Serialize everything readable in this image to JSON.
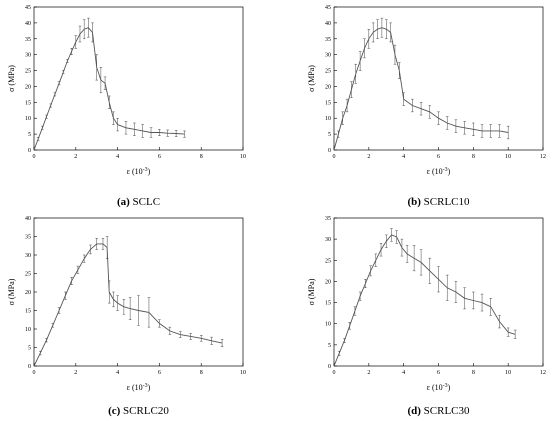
{
  "chart_data": [
    {
      "id": "a",
      "type": "line",
      "caption_letter": "(a)",
      "caption_name": "SCLC",
      "xlabel": "ε (10",
      "xlabel_exp": "-3",
      "xlabel_close": ")",
      "ylabel": "σ (MPa)",
      "xlim": [
        0,
        10
      ],
      "ylim": [
        0,
        45
      ],
      "xticks": [
        0,
        2,
        4,
        6,
        8,
        10
      ],
      "yticks": [
        0,
        5,
        10,
        15,
        20,
        25,
        30,
        35,
        40,
        45
      ],
      "x": [
        0,
        0.2,
        0.4,
        0.6,
        0.8,
        1.0,
        1.2,
        1.4,
        1.6,
        1.8,
        2.0,
        2.2,
        2.4,
        2.6,
        2.8,
        3.0,
        3.2,
        3.4,
        3.6,
        3.8,
        4.0,
        4.4,
        4.8,
        5.2,
        5.6,
        6.0,
        6.4,
        6.8,
        7.2
      ],
      "y": [
        0,
        3.5,
        7,
        10.5,
        14,
        17.5,
        21,
        24.5,
        28,
        31,
        34,
        36.5,
        38,
        38.5,
        37,
        26,
        22,
        21,
        15,
        10,
        8,
        7,
        6.5,
        6,
        5.5,
        5.5,
        5.3,
        5.2,
        5
      ],
      "err": [
        0,
        0.5,
        0.5,
        0.5,
        0.5,
        0.5,
        0.5,
        0.5,
        0.5,
        1,
        2,
        2.5,
        3,
        3,
        3,
        4,
        4,
        2,
        2,
        2,
        2,
        2,
        2,
        2,
        1.5,
        1,
        1,
        1,
        1
      ]
    },
    {
      "id": "b",
      "type": "line",
      "caption_letter": "(b)",
      "caption_name": "SCRLC10",
      "xlabel": "ε (10",
      "xlabel_exp": "-3",
      "xlabel_close": ")",
      "ylabel": "σ (MPa)",
      "xlim": [
        0,
        12
      ],
      "ylim": [
        0,
        45
      ],
      "xticks": [
        0,
        2,
        4,
        6,
        8,
        10,
        12
      ],
      "yticks": [
        0,
        5,
        10,
        15,
        20,
        25,
        30,
        35,
        40,
        45
      ],
      "x": [
        0,
        0.25,
        0.5,
        0.75,
        1.0,
        1.25,
        1.5,
        1.75,
        2.0,
        2.25,
        2.5,
        2.75,
        3.0,
        3.25,
        3.5,
        3.75,
        4.0,
        4.5,
        5.0,
        5.5,
        6.0,
        6.5,
        7.0,
        7.5,
        8.0,
        8.5,
        9.0,
        9.5,
        10.0
      ],
      "y": [
        0,
        5,
        10,
        14,
        19,
        24,
        28,
        32,
        35,
        37,
        38,
        38.5,
        38,
        37,
        30,
        25,
        16,
        14,
        13,
        12,
        10,
        8.5,
        7.5,
        7,
        6.5,
        6,
        6,
        6,
        5.5
      ],
      "err": [
        0,
        1,
        2,
        2,
        2.5,
        3,
        3,
        3,
        3,
        3,
        3,
        3,
        3,
        3,
        3,
        2.5,
        2,
        2,
        2,
        2,
        2,
        2,
        2,
        2,
        2,
        2,
        2,
        2,
        2
      ]
    },
    {
      "id": "c",
      "type": "line",
      "caption_letter": "(c)",
      "caption_name": "SCRLC20",
      "xlabel": "ε (10",
      "xlabel_exp": "-3",
      "xlabel_close": ")",
      "ylabel": "σ (MPa)",
      "xlim": [
        0,
        10
      ],
      "ylim": [
        0,
        40
      ],
      "xticks": [
        0,
        2,
        4,
        6,
        8,
        10
      ],
      "yticks": [
        0,
        5,
        10,
        15,
        20,
        25,
        30,
        35,
        40
      ],
      "x": [
        0,
        0.3,
        0.6,
        0.9,
        1.2,
        1.5,
        1.8,
        2.1,
        2.4,
        2.7,
        3.0,
        3.3,
        3.5,
        3.6,
        3.8,
        4.0,
        4.3,
        4.6,
        5.0,
        5.5,
        6.0,
        6.5,
        7.0,
        7.5,
        8.0,
        8.5,
        9.0
      ],
      "y": [
        0,
        3.5,
        7,
        11,
        15,
        19,
        23,
        26,
        29,
        31.5,
        33,
        33,
        32,
        20,
        18,
        17,
        16,
        15.5,
        15,
        14.5,
        11.5,
        9.5,
        8.5,
        8,
        7.5,
        6.8,
        6.2
      ],
      "err": [
        0,
        0.5,
        0.5,
        0.5,
        0.8,
        1,
        1,
        1,
        1,
        1.2,
        1.5,
        1.5,
        3,
        3,
        2,
        2,
        2,
        3,
        4,
        4,
        1,
        1,
        0.8,
        0.8,
        0.8,
        1,
        1
      ]
    },
    {
      "id": "d",
      "type": "line",
      "caption_letter": "(d)",
      "caption_name": "SCRLC30",
      "xlabel": "ε (10",
      "xlabel_exp": "-3",
      "xlabel_close": ")",
      "ylabel": "σ (MPa)",
      "xlim": [
        0,
        12
      ],
      "ylim": [
        0,
        35
      ],
      "xticks": [
        0,
        2,
        4,
        6,
        8,
        10,
        12
      ],
      "yticks": [
        0,
        5,
        10,
        15,
        20,
        25,
        30,
        35
      ],
      "x": [
        0,
        0.3,
        0.6,
        0.9,
        1.2,
        1.5,
        1.8,
        2.1,
        2.4,
        2.7,
        3.0,
        3.3,
        3.6,
        3.9,
        4.2,
        4.6,
        5.0,
        5.5,
        6.0,
        6.5,
        7.0,
        7.5,
        8.0,
        8.5,
        9.0,
        9.5,
        10.0,
        10.4
      ],
      "y": [
        0,
        3,
        6,
        9.5,
        13,
        16.5,
        19.5,
        22.5,
        25,
        27.5,
        29.5,
        31,
        30.5,
        28,
        26.5,
        25.5,
        24.5,
        22.5,
        20.5,
        18.5,
        17.5,
        16,
        15.5,
        15,
        14,
        10.5,
        8,
        7.5
      ],
      "err": [
        0,
        0.5,
        0.5,
        0.8,
        1,
        1,
        1,
        1.2,
        1.5,
        1.5,
        1.5,
        1.5,
        1.5,
        2,
        2,
        3,
        3,
        3,
        3,
        3,
        2.5,
        2.5,
        2,
        2,
        2,
        1.5,
        1,
        1
      ]
    }
  ]
}
